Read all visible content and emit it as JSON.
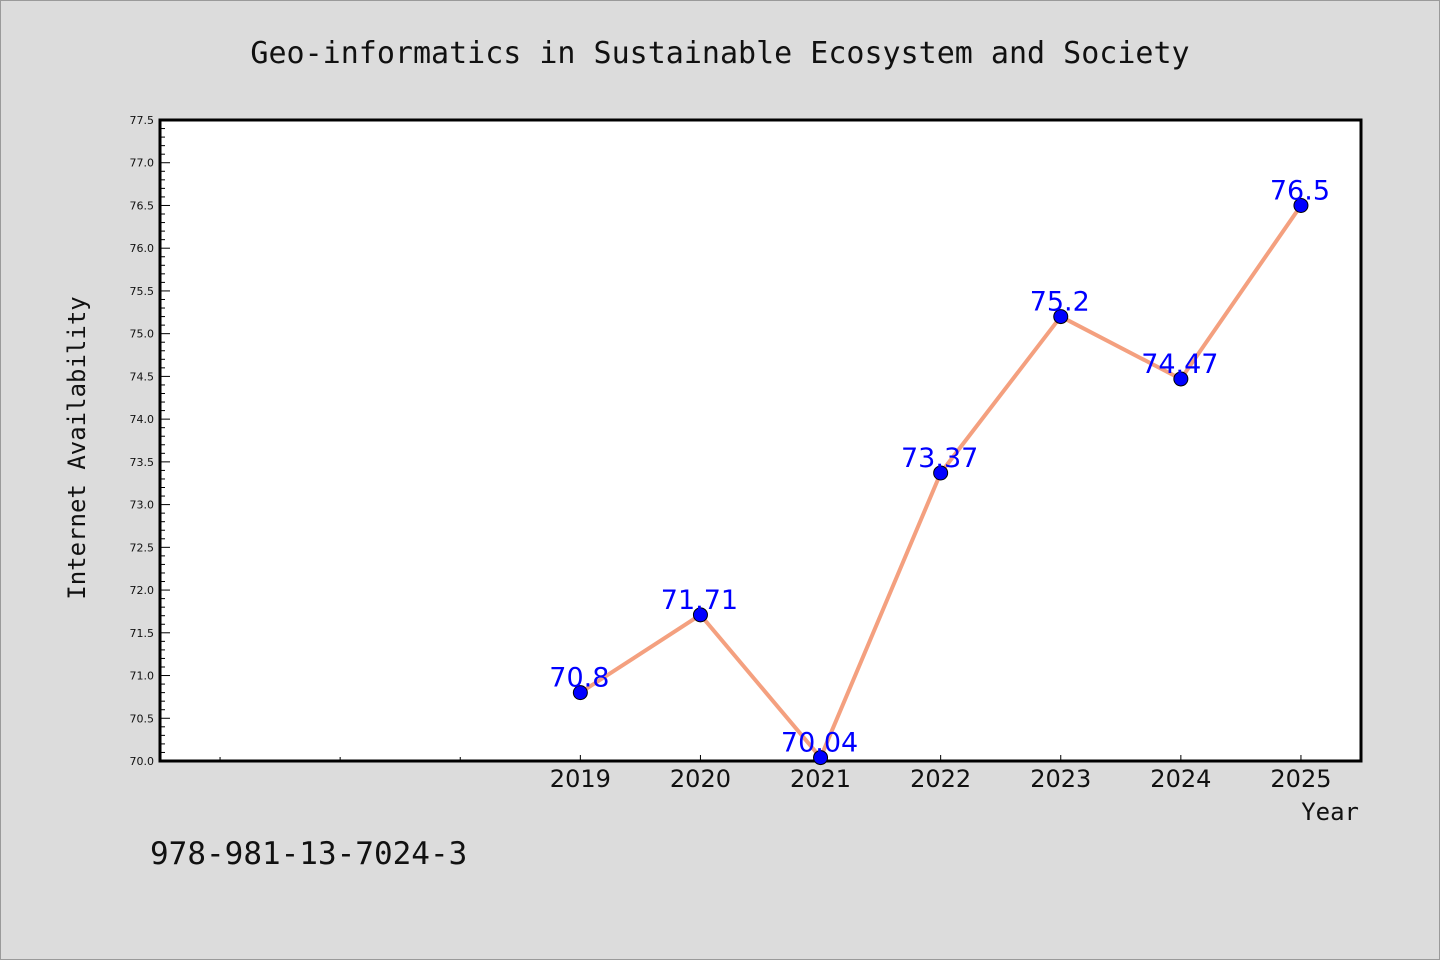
{
  "colors": {
    "background": "#dcdcdc",
    "plot_background": "#ffffff",
    "line": "#f4a07f",
    "marker": "#0000ff",
    "marker_edge": "#000000",
    "data_label": "#0000ff"
  },
  "footer": {
    "code": "978-981-13-7024-3"
  },
  "chart_data": {
    "type": "line",
    "title": "Geo-informatics in Sustainable Ecosystem and Society",
    "xlabel": "Year",
    "ylabel": "Internet Availability",
    "x": [
      2019,
      2020,
      2021,
      2022,
      2023,
      2024,
      2025
    ],
    "x_tick_labels": [
      "2019",
      "2020",
      "2021",
      "2022",
      "2023",
      "2024",
      "2025"
    ],
    "xlim": [
      2015.5,
      2025.5
    ],
    "ylim": [
      70.0,
      77.5
    ],
    "y_ticks": [
      "70.0",
      "70.5",
      "71.0",
      "71.5",
      "72.0",
      "72.5",
      "73.0",
      "73.5",
      "74.0",
      "74.5",
      "75.0",
      "75.5",
      "76.0",
      "76.5",
      "77.0",
      "77.5"
    ],
    "series": [
      {
        "values": [
          70.8,
          71.71,
          70.04,
          73.37,
          75.2,
          74.47,
          76.5
        ],
        "data_labels": [
          "70.8",
          "71.71",
          "70.04",
          "73.37",
          "75.2",
          "74.47",
          "76.5"
        ]
      }
    ],
    "grid": false,
    "legend": "none"
  }
}
